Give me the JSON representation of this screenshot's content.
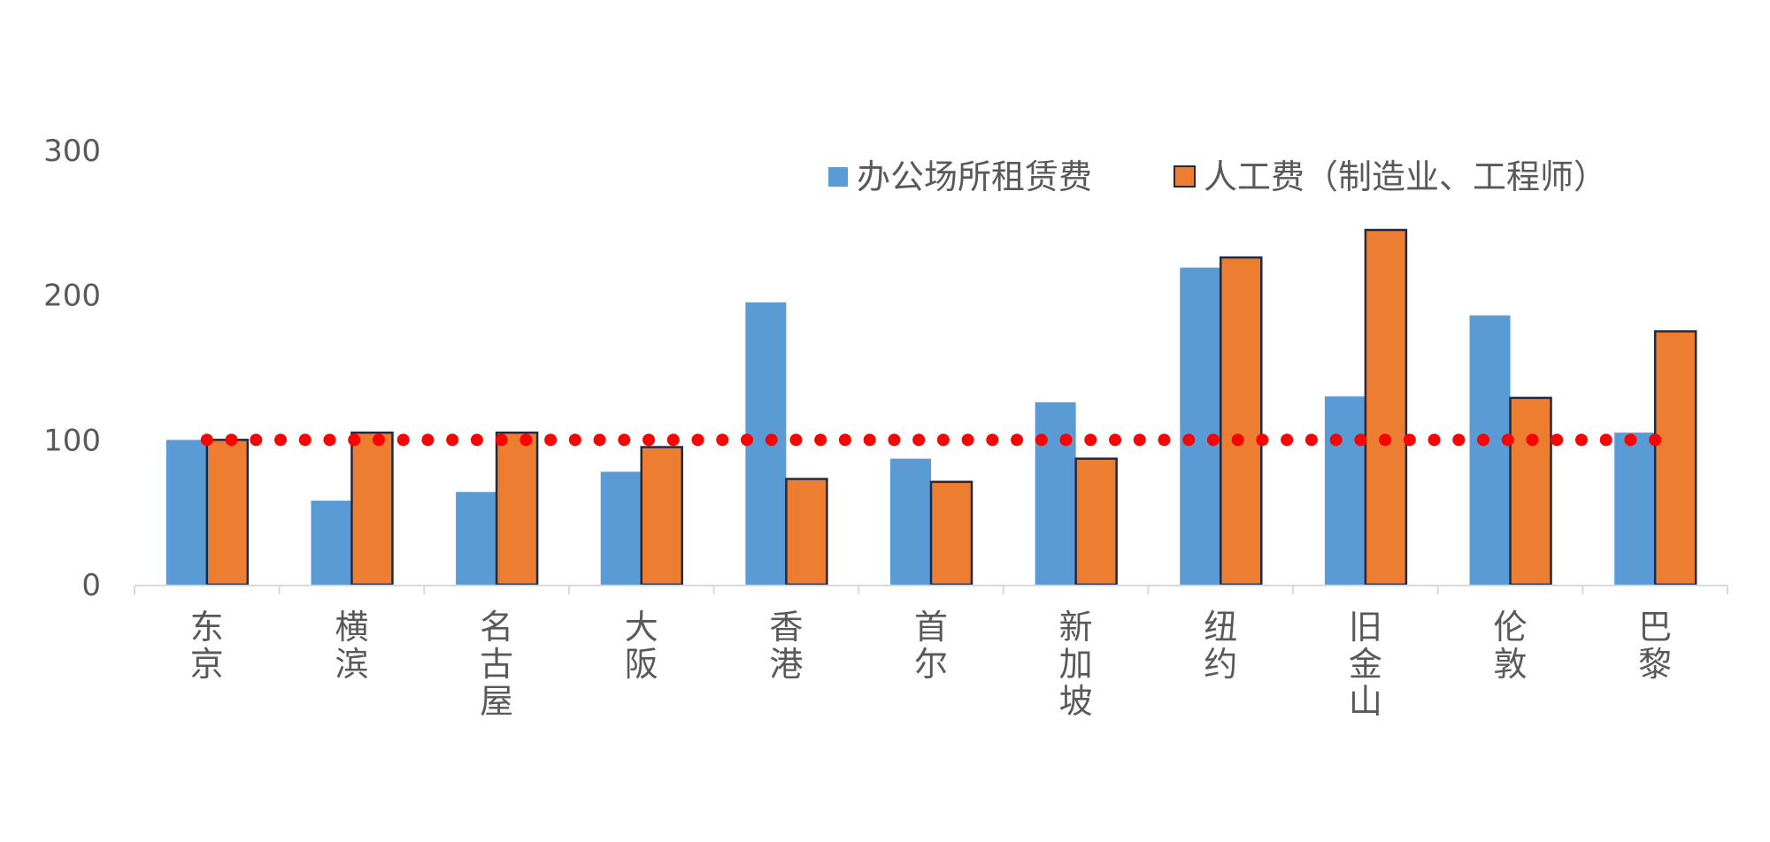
{
  "chart_data": {
    "type": "bar",
    "title": "",
    "xlabel": "",
    "ylabel": "",
    "ylim": [
      0,
      300
    ],
    "yticks": [
      0,
      100,
      200,
      300
    ],
    "grid": false,
    "legend_position": "top-right",
    "categories": [
      "东京",
      "横滨",
      "名古屋",
      "大阪",
      "香港",
      "首尔",
      "新加坡",
      "纽约",
      "旧金山",
      "伦敦",
      "巴黎"
    ],
    "series": [
      {
        "name": "办公场所租赁费",
        "color": "#5B9BD5",
        "values": [
          100,
          58,
          64,
          78,
          195,
          87,
          126,
          219,
          130,
          186,
          105
        ]
      },
      {
        "name": "人工费（制造业、工程师）",
        "color": "#ED7D31",
        "outline": "#1F2A44",
        "values": [
          100,
          105,
          105,
          95,
          73,
          71,
          87,
          226,
          245,
          129,
          175
        ]
      }
    ],
    "reference_line": {
      "value": 100,
      "color": "#FF0000",
      "style": "dotted"
    }
  }
}
